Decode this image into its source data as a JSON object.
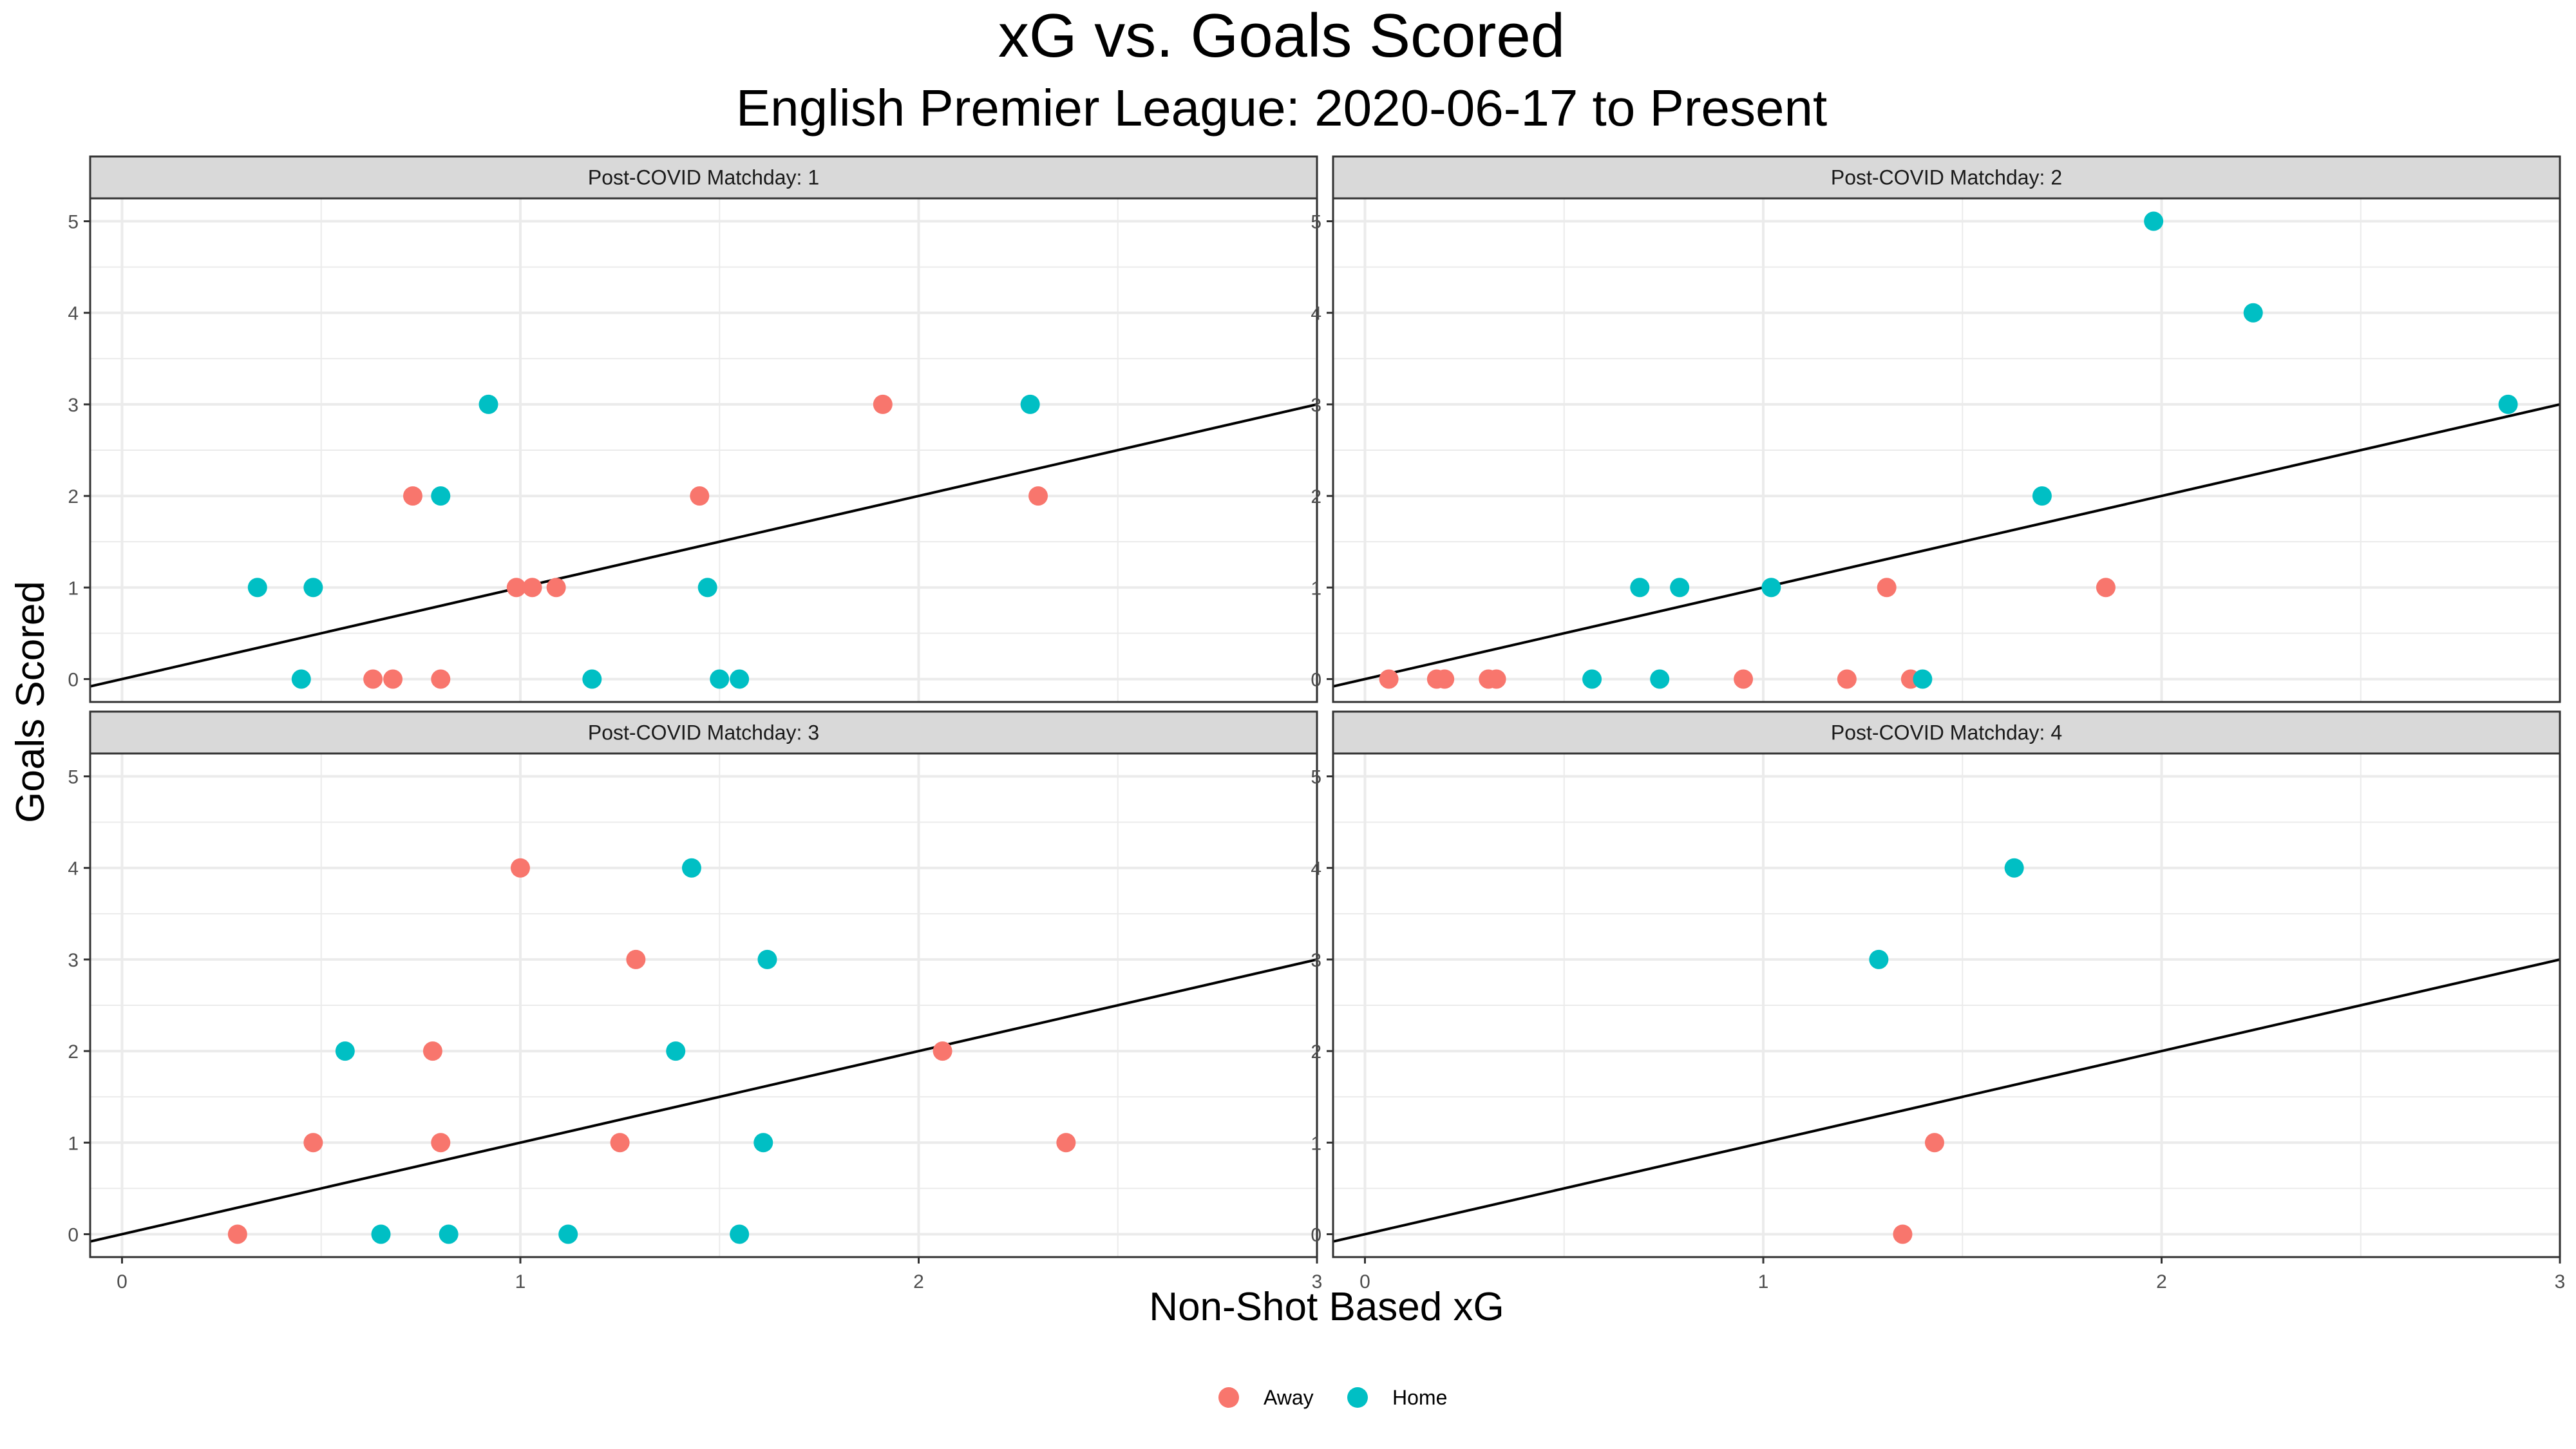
{
  "colors": {
    "away": "#F8766D",
    "home": "#00BFC4",
    "strip_fill": "#D9D9D9",
    "grid": "#EBEBEB"
  },
  "chart_data": {
    "type": "scatter",
    "title": "xG vs. Goals Scored",
    "subtitle": "English Premier League: 2020-06-17 to Present",
    "xlabel": "Non-Shot Based xG",
    "ylabel": "Goals Scored",
    "xlim": [
      -0.08,
      3.0
    ],
    "ylim": [
      -0.25,
      5.25
    ],
    "x_ticks": [
      "0",
      "1",
      "2",
      "3"
    ],
    "y_ticks": [
      "0",
      "1",
      "2",
      "3",
      "4",
      "5"
    ],
    "grid": true,
    "legend_position": "bottom",
    "reference_line": {
      "type": "y=x"
    },
    "series": [
      {
        "name": "Away",
        "color": "#F8766D"
      },
      {
        "name": "Home",
        "color": "#00BFC4"
      }
    ],
    "panels": [
      {
        "label": "Post-COVID Matchday: 1",
        "points": [
          {
            "team": "Home",
            "x": 0.34,
            "y": 1
          },
          {
            "team": "Home",
            "x": 0.48,
            "y": 1
          },
          {
            "team": "Home",
            "x": 0.45,
            "y": 0
          },
          {
            "team": "Away",
            "x": 0.63,
            "y": 0
          },
          {
            "team": "Away",
            "x": 0.68,
            "y": 0
          },
          {
            "team": "Away",
            "x": 0.73,
            "y": 2
          },
          {
            "team": "Home",
            "x": 0.8,
            "y": 2
          },
          {
            "team": "Away",
            "x": 0.8,
            "y": 0
          },
          {
            "team": "Home",
            "x": 0.92,
            "y": 3
          },
          {
            "team": "Away",
            "x": 0.99,
            "y": 1
          },
          {
            "team": "Away",
            "x": 1.03,
            "y": 1
          },
          {
            "team": "Away",
            "x": 1.09,
            "y": 1
          },
          {
            "team": "Home",
            "x": 1.18,
            "y": 0
          },
          {
            "team": "Away",
            "x": 1.45,
            "y": 2
          },
          {
            "team": "Home",
            "x": 1.47,
            "y": 1
          },
          {
            "team": "Home",
            "x": 1.5,
            "y": 0
          },
          {
            "team": "Home",
            "x": 1.55,
            "y": 0
          },
          {
            "team": "Away",
            "x": 1.91,
            "y": 3
          },
          {
            "team": "Home",
            "x": 2.28,
            "y": 3
          },
          {
            "team": "Away",
            "x": 2.3,
            "y": 2
          }
        ]
      },
      {
        "label": "Post-COVID Matchday: 2",
        "points": [
          {
            "team": "Away",
            "x": 0.06,
            "y": 0
          },
          {
            "team": "Away",
            "x": 0.18,
            "y": 0
          },
          {
            "team": "Away",
            "x": 0.2,
            "y": 0
          },
          {
            "team": "Away",
            "x": 0.31,
            "y": 0
          },
          {
            "team": "Away",
            "x": 0.33,
            "y": 0
          },
          {
            "team": "Home",
            "x": 0.57,
            "y": 0
          },
          {
            "team": "Home",
            "x": 0.69,
            "y": 1
          },
          {
            "team": "Home",
            "x": 0.74,
            "y": 0
          },
          {
            "team": "Home",
            "x": 0.79,
            "y": 1
          },
          {
            "team": "Away",
            "x": 0.95,
            "y": 0
          },
          {
            "team": "Home",
            "x": 1.02,
            "y": 1
          },
          {
            "team": "Away",
            "x": 1.21,
            "y": 0
          },
          {
            "team": "Away",
            "x": 1.31,
            "y": 1
          },
          {
            "team": "Away",
            "x": 1.37,
            "y": 0
          },
          {
            "team": "Home",
            "x": 1.4,
            "y": 0
          },
          {
            "team": "Home",
            "x": 1.7,
            "y": 2
          },
          {
            "team": "Away",
            "x": 1.86,
            "y": 1
          },
          {
            "team": "Home",
            "x": 1.98,
            "y": 5
          },
          {
            "team": "Home",
            "x": 2.23,
            "y": 4
          },
          {
            "team": "Home",
            "x": 2.87,
            "y": 3
          }
        ]
      },
      {
        "label": "Post-COVID Matchday: 3",
        "points": [
          {
            "team": "Away",
            "x": 0.29,
            "y": 0
          },
          {
            "team": "Away",
            "x": 0.48,
            "y": 1
          },
          {
            "team": "Home",
            "x": 0.56,
            "y": 2
          },
          {
            "team": "Home",
            "x": 0.65,
            "y": 0
          },
          {
            "team": "Away",
            "x": 0.78,
            "y": 2
          },
          {
            "team": "Away",
            "x": 0.8,
            "y": 1
          },
          {
            "team": "Home",
            "x": 0.82,
            "y": 0
          },
          {
            "team": "Away",
            "x": 1.0,
            "y": 4
          },
          {
            "team": "Home",
            "x": 1.12,
            "y": 0
          },
          {
            "team": "Away",
            "x": 1.25,
            "y": 1
          },
          {
            "team": "Away",
            "x": 1.29,
            "y": 3
          },
          {
            "team": "Home",
            "x": 1.39,
            "y": 2
          },
          {
            "team": "Home",
            "x": 1.43,
            "y": 4
          },
          {
            "team": "Home",
            "x": 1.55,
            "y": 0
          },
          {
            "team": "Home",
            "x": 1.61,
            "y": 1
          },
          {
            "team": "Home",
            "x": 1.62,
            "y": 3
          },
          {
            "team": "Away",
            "x": 2.06,
            "y": 2
          },
          {
            "team": "Away",
            "x": 2.37,
            "y": 1
          }
        ]
      },
      {
        "label": "Post-COVID Matchday: 4",
        "points": [
          {
            "team": "Home",
            "x": 1.29,
            "y": 3
          },
          {
            "team": "Away",
            "x": 1.35,
            "y": 0
          },
          {
            "team": "Away",
            "x": 1.43,
            "y": 1
          },
          {
            "team": "Home",
            "x": 1.63,
            "y": 4
          }
        ]
      }
    ]
  }
}
